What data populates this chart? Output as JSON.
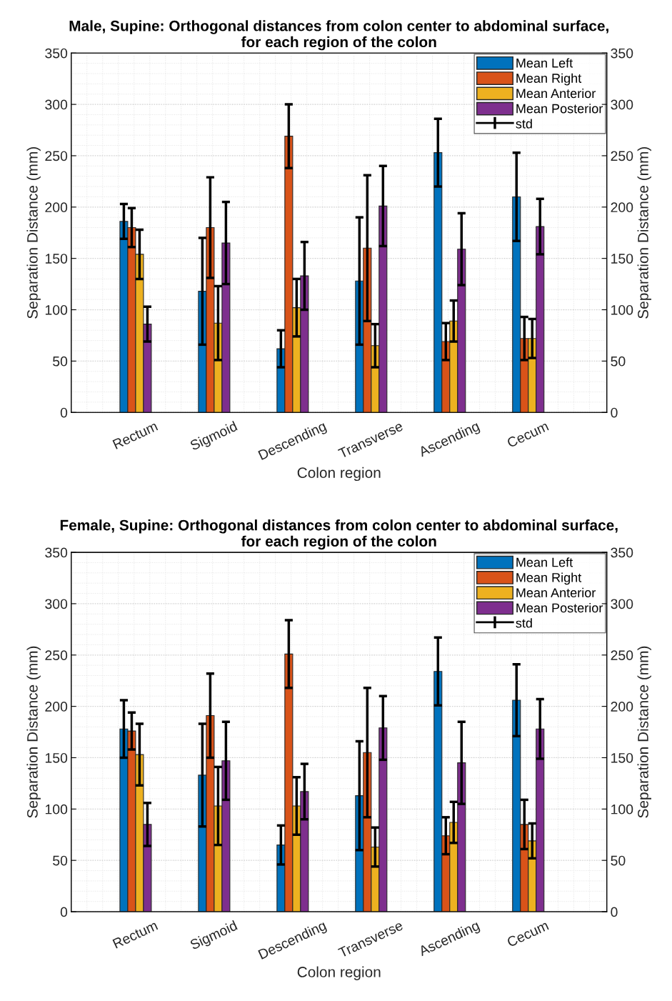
{
  "chart_data": [
    {
      "type": "bar",
      "title": "Male, Supine: Orthogonal distances from colon center to abdominal surface,\nfor each region of the colon",
      "xlabel": "Colon region",
      "ylabel": "Separation Distance (mm)",
      "y2label": "Separation Distance (mm)",
      "categories": [
        "Rectum",
        "Sigmoid",
        "Descending",
        "Transverse",
        "Ascending",
        "Cecum"
      ],
      "series": [
        {
          "name": "Mean Left",
          "color": "#0072bd",
          "values": [
            186,
            118,
            62,
            128,
            253,
            210
          ],
          "errors": [
            17,
            52,
            18,
            62,
            33,
            43
          ]
        },
        {
          "name": "Mean Right",
          "color": "#d95319",
          "values": [
            180,
            180,
            269,
            160,
            69,
            72
          ],
          "errors": [
            19,
            49,
            31,
            71,
            18,
            21
          ]
        },
        {
          "name": "Mean Anterior",
          "color": "#edb120",
          "values": [
            154,
            87,
            102,
            65,
            89,
            72
          ],
          "errors": [
            24,
            36,
            28,
            21,
            20,
            19
          ]
        },
        {
          "name": "Mean Posterior",
          "color": "#7e2f8e",
          "values": [
            86,
            165,
            133,
            201,
            159,
            181
          ],
          "errors": [
            17,
            40,
            33,
            39,
            35,
            27
          ]
        }
      ],
      "annotations": [
        "std"
      ],
      "ylim": [
        0,
        350
      ],
      "yticks": [
        0,
        50,
        100,
        150,
        200,
        250,
        300,
        350
      ],
      "y2lim": [
        0,
        350
      ],
      "y2ticks": [
        0,
        50,
        100,
        150,
        200,
        250,
        300,
        350
      ],
      "grid": true,
      "legend": "top right"
    },
    {
      "type": "bar",
      "title": "Female, Supine: Orthogonal distances from colon center to abdominal surface,\nfor each region of the colon",
      "xlabel": "Colon region",
      "ylabel": "Separation Distance (mm)",
      "y2label": "Separation Distance (mm)",
      "categories": [
        "Rectum",
        "Sigmoid",
        "Descending",
        "Transverse",
        "Ascending",
        "Cecum"
      ],
      "series": [
        {
          "name": "Mean Left",
          "color": "#0072bd",
          "values": [
            178,
            133,
            65,
            113,
            234,
            206
          ],
          "errors": [
            28,
            50,
            19,
            53,
            33,
            35
          ]
        },
        {
          "name": "Mean Right",
          "color": "#d95319",
          "values": [
            176,
            191,
            251,
            155,
            74,
            85
          ],
          "errors": [
            18,
            41,
            33,
            63,
            18,
            24
          ]
        },
        {
          "name": "Mean Anterior",
          "color": "#edb120",
          "values": [
            153,
            103,
            103,
            63,
            87,
            69
          ],
          "errors": [
            30,
            38,
            28,
            19,
            20,
            17
          ]
        },
        {
          "name": "Mean Posterior",
          "color": "#7e2f8e",
          "values": [
            85,
            147,
            117,
            179,
            145,
            178
          ],
          "errors": [
            21,
            38,
            27,
            31,
            40,
            29
          ]
        }
      ],
      "annotations": [
        "std"
      ],
      "ylim": [
        0,
        350
      ],
      "yticks": [
        0,
        50,
        100,
        150,
        200,
        250,
        300,
        350
      ],
      "y2lim": [
        0,
        350
      ],
      "y2ticks": [
        0,
        50,
        100,
        150,
        200,
        250,
        300,
        350
      ],
      "grid": true,
      "legend": "top right"
    }
  ]
}
